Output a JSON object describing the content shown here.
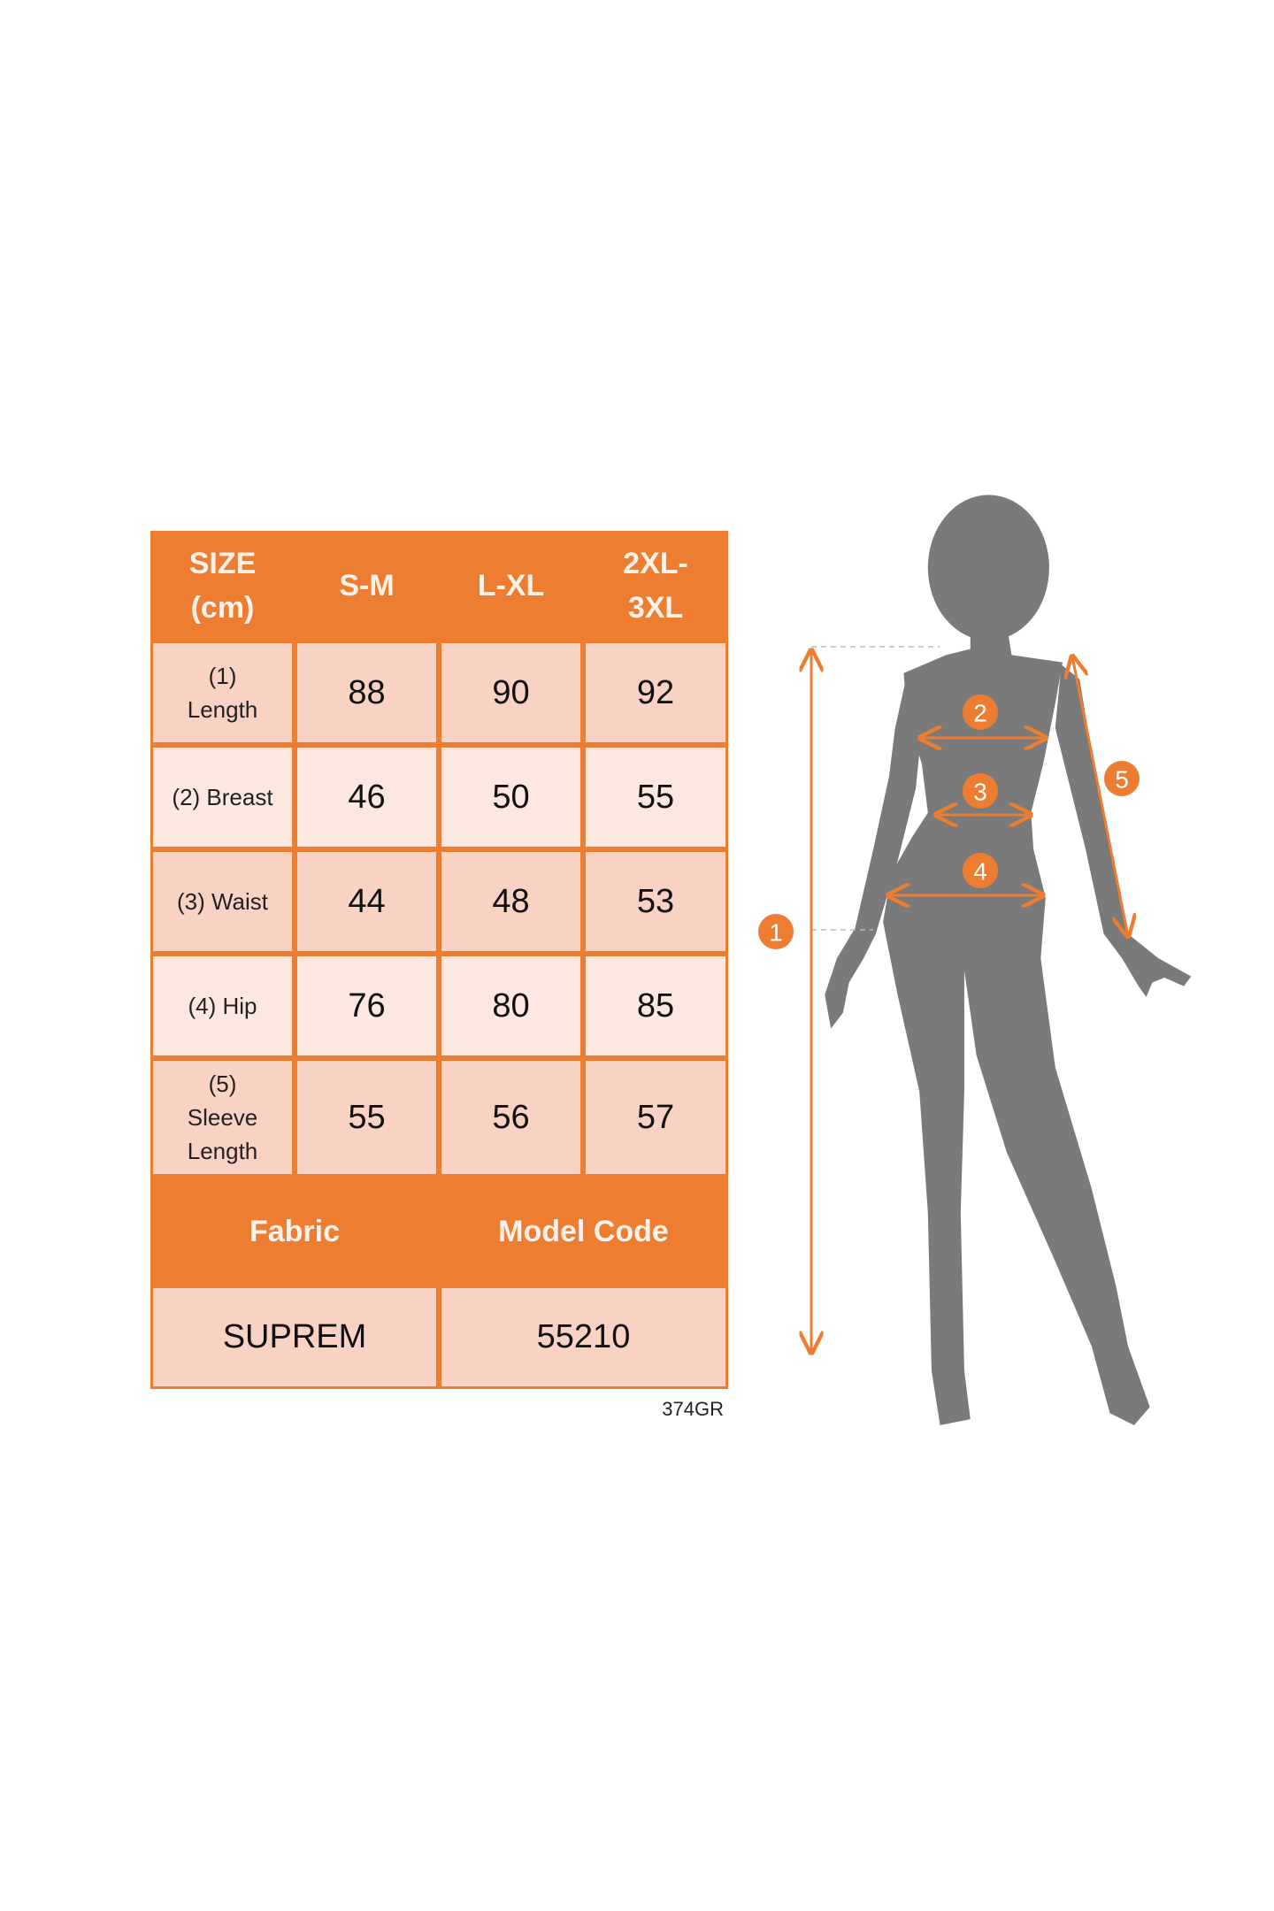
{
  "colors": {
    "accent": "#ED7D31",
    "cell_dark": "#F8D3C4",
    "cell_light": "#FCE8E0",
    "silhouette": "#7a7a7a"
  },
  "table": {
    "header": [
      "SIZE\n(cm)",
      "S-M",
      "L-XL",
      "2XL-\n3XL"
    ],
    "rows": [
      {
        "label": "(1)\nLength",
        "values": [
          "88",
          "90",
          "92"
        ]
      },
      {
        "label": "(2) Breast",
        "values": [
          "46",
          "50",
          "55"
        ]
      },
      {
        "label": "(3) Waist",
        "values": [
          "44",
          "48",
          "53"
        ]
      },
      {
        "label": "(4) Hip",
        "values": [
          "76",
          "80",
          "85"
        ]
      },
      {
        "label": "(5)\nSleeve\nLength",
        "values": [
          "55",
          "56",
          "57"
        ]
      }
    ],
    "footer_headers": [
      "Fabric",
      "Model Code"
    ],
    "footer_values": [
      "SUPREM",
      "55210"
    ]
  },
  "code": "374GR",
  "figure": {
    "markers": [
      "1",
      "2",
      "3",
      "4",
      "5"
    ]
  }
}
